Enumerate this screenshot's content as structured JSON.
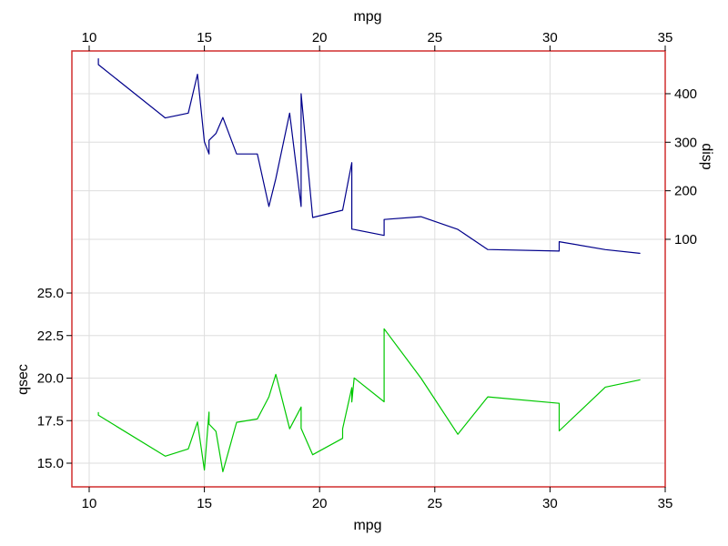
{
  "chart_data": {
    "type": "line",
    "title": "",
    "legend": "none",
    "grid": true,
    "top_axis": {
      "label": "mpg",
      "values": [
        10,
        15,
        20,
        25,
        30,
        35
      ],
      "tick_labels": [
        "10",
        "15",
        "20",
        "25",
        "30",
        "35"
      ],
      "range": [
        9.2,
        35
      ]
    },
    "bottom_axis": {
      "label": "mpg",
      "values": [
        10,
        15,
        20,
        25,
        30,
        35
      ],
      "tick_labels": [
        "10",
        "15",
        "20",
        "25",
        "30",
        "35"
      ],
      "range": [
        9.2,
        35
      ]
    },
    "left_axis": {
      "label": "qsec",
      "values": [
        25.0,
        22.5,
        20.0,
        17.5,
        15.0
      ],
      "tick_labels": [
        "25.0",
        "22.5",
        "20.0",
        "17.5",
        "15.0"
      ]
    },
    "right_axis": {
      "label": "disp",
      "values": [
        400,
        300,
        200,
        100
      ],
      "tick_labels": [
        "400",
        "300",
        "200",
        "100"
      ]
    },
    "x": [
      10.4,
      10.4,
      13.3,
      14.3,
      14.7,
      15.0,
      15.2,
      15.2,
      15.5,
      15.8,
      16.4,
      17.3,
      17.8,
      18.1,
      18.7,
      19.2,
      19.2,
      19.7,
      21.0,
      21.0,
      21.4,
      21.4,
      21.5,
      22.8,
      22.8,
      24.4,
      26.0,
      27.3,
      30.4,
      30.4,
      32.4,
      33.9
    ],
    "series": [
      {
        "name": "disp",
        "axis": "right",
        "color": "#00008B",
        "values": [
          472,
          460,
          350,
          360,
          440,
          301,
          275.8,
          304,
          318,
          351,
          275.8,
          275.8,
          167.6,
          225,
          360,
          167.6,
          400,
          145,
          160,
          160,
          258,
          121,
          120.1,
          108,
          140.8,
          146.7,
          120.3,
          79,
          75.7,
          95.1,
          78.7,
          71.1
        ]
      },
      {
        "name": "qsec",
        "axis": "left",
        "color": "#00C800",
        "values": [
          17.98,
          17.82,
          15.41,
          15.84,
          17.42,
          14.6,
          18.0,
          17.3,
          16.87,
          14.5,
          17.4,
          17.6,
          18.9,
          20.22,
          17.02,
          18.3,
          17.05,
          15.5,
          16.46,
          17.02,
          19.44,
          18.6,
          20.01,
          18.61,
          22.9,
          20.0,
          16.7,
          18.9,
          18.52,
          16.9,
          19.47,
          19.9
        ]
      }
    ],
    "colors": {
      "border": "#D02E2E",
      "grid": "#DEDEDE",
      "background": "#FFFFFF",
      "text": "#000000"
    }
  }
}
